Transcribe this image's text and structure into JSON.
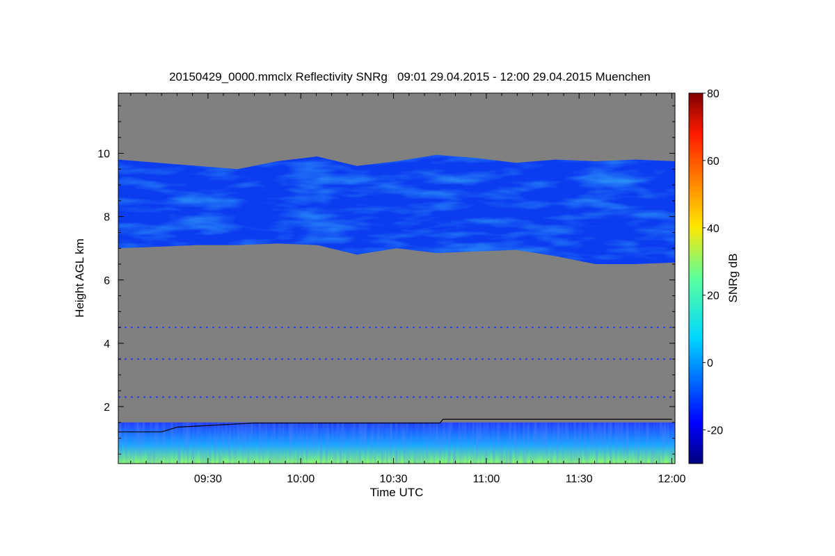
{
  "chart_data": {
    "type": "heatmap",
    "title": "20150429_0000.mmclx Reflectivity SNRg   09:01 29.04.2015 - 12:00 29.04.2015 Muenchen",
    "xlabel": "Time UTC",
    "ylabel": "Height AGL km",
    "colorbar_label": "SNRg dB",
    "xlim": [
      "09:01",
      "12:01"
    ],
    "ylim": [
      0.2,
      11.9
    ],
    "x_ticks": [
      "09:30",
      "10:00",
      "10:30",
      "11:00",
      "11:30",
      "12:00"
    ],
    "y_ticks": [
      "2",
      "4",
      "6",
      "8",
      "10"
    ],
    "colorbar_range": [
      -30,
      80
    ],
    "colorbar_ticks": [
      "-20",
      "0",
      "20",
      "40",
      "60",
      "80"
    ],
    "background_color": "#808080",
    "colormap": "jet",
    "features": {
      "upper_cloud_layer": {
        "base_km": [
          7.0,
          7.05,
          7.1,
          7.1,
          7.15,
          7.1,
          6.8,
          7.0,
          6.85,
          6.9,
          6.95,
          6.75,
          6.5,
          6.5,
          6.55
        ],
        "top_km": [
          9.8,
          9.7,
          9.6,
          9.5,
          9.75,
          9.9,
          9.6,
          9.75,
          9.95,
          9.85,
          9.7,
          9.8,
          9.75,
          9.8,
          9.75
        ],
        "snr_db_range": [
          -20,
          5
        ]
      },
      "boundary_layer": {
        "top_km": 1.5,
        "snr_db_range": [
          -20,
          30
        ]
      },
      "noise_lines_km": [
        4.5,
        3.5,
        2.3
      ],
      "boundary_layer_height_line": {
        "times": [
          "09:01",
          "09:15",
          "09:20",
          "09:45",
          "10:45",
          "10:46",
          "12:00"
        ],
        "height_km": [
          1.2,
          1.2,
          1.35,
          1.48,
          1.48,
          1.6,
          1.6
        ]
      }
    }
  }
}
